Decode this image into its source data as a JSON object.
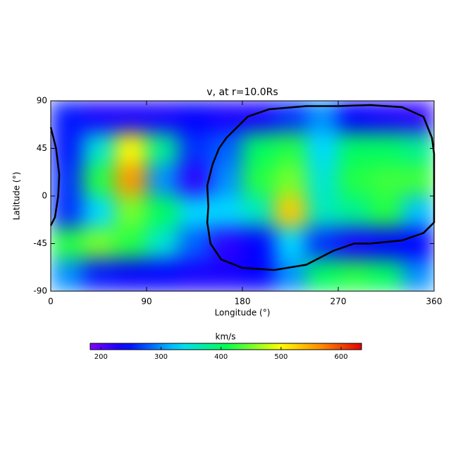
{
  "chart_data": {
    "type": "heatmap",
    "title": "v, at r=10.0Rs",
    "x_label": "Longitude (°)",
    "y_label": "Latitude (°)",
    "x": [
      15,
      45,
      75,
      105,
      135,
      165,
      195,
      225,
      255,
      285,
      315,
      345
    ],
    "y": [
      75,
      45,
      15,
      -15,
      -45,
      -75
    ],
    "z": [
      [
        250,
        230,
        230,
        230,
        240,
        230,
        230,
        260,
        300,
        240,
        230,
        220
      ],
      [
        250,
        350,
        500,
        380,
        260,
        280,
        400,
        420,
        330,
        400,
        400,
        380
      ],
      [
        260,
        420,
        560,
        300,
        220,
        300,
        420,
        450,
        350,
        420,
        430,
        430
      ],
      [
        260,
        330,
        450,
        400,
        330,
        330,
        360,
        530,
        360,
        380,
        420,
        320
      ],
      [
        420,
        450,
        420,
        350,
        280,
        220,
        240,
        330,
        260,
        230,
        240,
        240
      ],
      [
        300,
        250,
        240,
        240,
        230,
        230,
        240,
        300,
        400,
        420,
        400,
        300
      ]
    ],
    "xlim": [
      0,
      360
    ],
    "ylim": [
      -90,
      90
    ],
    "xticks": [
      0,
      90,
      180,
      270,
      360
    ],
    "yticks": [
      -90,
      -45,
      0,
      45,
      90
    ],
    "contours": [
      {
        "x": [
          0,
          5,
          8,
          7,
          4,
          0
        ],
        "y": [
          65,
          45,
          20,
          0,
          -20,
          -28
        ],
        "color": "#000000"
      },
      {
        "x": [
          148,
          147,
          152,
          158,
          165,
          175,
          185,
          205,
          240,
          270,
          300,
          330,
          350,
          358,
          360,
          360,
          350,
          330,
          300,
          285,
          265,
          240,
          210,
          180,
          160,
          150,
          147,
          148
        ],
        "y": [
          -10,
          10,
          30,
          45,
          55,
          65,
          75,
          82,
          85,
          85,
          86,
          84,
          75,
          55,
          40,
          -25,
          -35,
          -42,
          -45,
          -45,
          -52,
          -65,
          -70,
          -68,
          -60,
          -45,
          -25,
          -10
        ],
        "color": "#000000"
      }
    ],
    "colorbar": {
      "label": "km/s",
      "clim": [
        182,
        634
      ],
      "ticks": [
        200,
        300,
        400,
        500,
        600
      ]
    }
  }
}
